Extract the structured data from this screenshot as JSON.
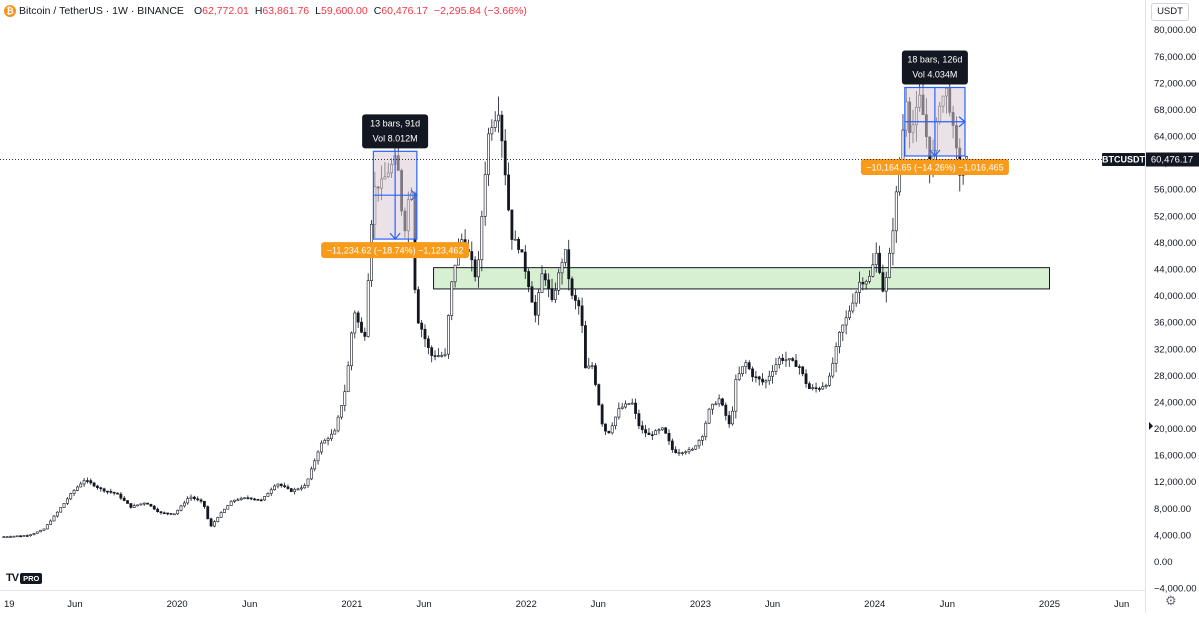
{
  "legend": {
    "icon": "bitcoin-icon",
    "title": "Bitcoin / TetherUS · 1W · BINANCE",
    "o_label": "O",
    "o_value": "62,772.01",
    "h_label": "H",
    "h_value": "63,861.76",
    "l_label": "L",
    "l_value": "59,600.00",
    "c_label": "C",
    "c_value": "60,476.17",
    "change": "−2,295.84 (−3.66%)"
  },
  "currency_button": "USDT",
  "last_price": {
    "symbol": "BTCUSDT",
    "value": "60,476.17",
    "price": 60476.17
  },
  "watermark": {
    "logo": "TV",
    "badge": "PRO"
  },
  "settings_icon": "gear-icon",
  "colors": {
    "up": "#131722",
    "down": "#131722",
    "measure_box": "#2962ff",
    "measure_fill": "#d9cbd2",
    "label_dark": "#131722",
    "label_orange": "#f89b1a",
    "zone_fill": "#d8f0d2",
    "zone_border": "#131722",
    "axis_text": "#131722",
    "current_price_line": "#131722"
  },
  "chart_data": {
    "type": "candlestick",
    "interval": "1W",
    "x_axis_labels": [
      "19",
      "Jun",
      "2020",
      "Jun",
      "2021",
      "Jun",
      "2022",
      "Jun",
      "2023",
      "Jun",
      "2024",
      "Jun",
      "2025",
      "Jun"
    ],
    "x_axis_label_dates": [
      "2019-01-01",
      "2019-06-01",
      "2020-01-01",
      "2020-06-01",
      "2021-01-01",
      "2021-06-01",
      "2022-01-01",
      "2022-06-01",
      "2023-01-01",
      "2023-06-01",
      "2024-01-01",
      "2024-06-01",
      "2025-01-01",
      "2025-06-01"
    ],
    "y_axis_labels": [
      "80,000.00",
      "76,000.00",
      "72,000.00",
      "68,000.00",
      "64,000.00",
      "60,000.00",
      "56,000.00",
      "52,000.00",
      "48,000.00",
      "44,000.00",
      "40,000.00",
      "36,000.00",
      "32,000.00",
      "28,000.00",
      "24,000.00",
      "20,000.00",
      "16,000.00",
      "12,000.00",
      "8,000.00",
      "4,000.00",
      "0.00",
      "−4,000.00"
    ],
    "y_range": [
      -5000,
      82000
    ],
    "x_range": [
      "2018-12-26",
      "2025-07-20"
    ],
    "price_series": [
      [
        "2019-01-01",
        3700
      ],
      [
        "2019-03-01",
        3950
      ],
      [
        "2019-04-01",
        4800
      ],
      [
        "2019-05-01",
        7500
      ],
      [
        "2019-06-01",
        10500
      ],
      [
        "2019-06-26",
        12300
      ],
      [
        "2019-08-01",
        10800
      ],
      [
        "2019-09-01",
        10200
      ],
      [
        "2019-10-01",
        8200
      ],
      [
        "2019-11-01",
        8900
      ],
      [
        "2019-12-01",
        7300
      ],
      [
        "2020-01-01",
        7200
      ],
      [
        "2020-02-01",
        9800
      ],
      [
        "2020-03-01",
        8800
      ],
      [
        "2020-03-15",
        5100
      ],
      [
        "2020-04-01",
        6800
      ],
      [
        "2020-05-01",
        9200
      ],
      [
        "2020-06-01",
        9600
      ],
      [
        "2020-07-01",
        9200
      ],
      [
        "2020-08-01",
        11800
      ],
      [
        "2020-09-01",
        10600
      ],
      [
        "2020-10-01",
        11400
      ],
      [
        "2020-11-01",
        17600
      ],
      [
        "2020-12-01",
        19500
      ],
      [
        "2020-12-25",
        26500
      ],
      [
        "2021-01-10",
        38000
      ],
      [
        "2021-02-01",
        33000
      ],
      [
        "2021-02-20",
        56000
      ],
      [
        "2021-03-10",
        57000
      ],
      [
        "2021-04-10",
        61000
      ],
      [
        "2021-04-25",
        49000
      ],
      [
        "2021-05-10",
        58000
      ],
      [
        "2021-05-20",
        37000
      ],
      [
        "2021-06-01",
        35000
      ],
      [
        "2021-06-20",
        31000
      ],
      [
        "2021-07-20",
        31000
      ],
      [
        "2021-08-01",
        41000
      ],
      [
        "2021-08-20",
        49000
      ],
      [
        "2021-09-10",
        46000
      ],
      [
        "2021-09-25",
        42000
      ],
      [
        "2021-10-10",
        57000
      ],
      [
        "2021-10-20",
        65000
      ],
      [
        "2021-11-10",
        68000
      ],
      [
        "2021-11-25",
        57000
      ],
      [
        "2021-12-05",
        49000
      ],
      [
        "2021-12-25",
        47000
      ],
      [
        "2022-01-10",
        42000
      ],
      [
        "2022-01-25",
        37000
      ],
      [
        "2022-02-10",
        44000
      ],
      [
        "2022-03-01",
        39000
      ],
      [
        "2022-03-28",
        47000
      ],
      [
        "2022-04-10",
        40000
      ],
      [
        "2022-04-30",
        38000
      ],
      [
        "2022-05-10",
        29000
      ],
      [
        "2022-05-25",
        29500
      ],
      [
        "2022-06-13",
        21000
      ],
      [
        "2022-06-25",
        19000
      ],
      [
        "2022-07-20",
        23000
      ],
      [
        "2022-08-15",
        24000
      ],
      [
        "2022-09-01",
        20000
      ],
      [
        "2022-09-20",
        19000
      ],
      [
        "2022-10-20",
        20000
      ],
      [
        "2022-11-10",
        16500
      ],
      [
        "2022-11-25",
        16500
      ],
      [
        "2022-12-20",
        16800
      ],
      [
        "2023-01-10",
        19000
      ],
      [
        "2023-01-25",
        23000
      ],
      [
        "2023-02-15",
        24500
      ],
      [
        "2023-03-10",
        20000
      ],
      [
        "2023-03-20",
        27000
      ],
      [
        "2023-04-10",
        30000
      ],
      [
        "2023-04-25",
        28000
      ],
      [
        "2023-05-20",
        26800
      ],
      [
        "2023-06-20",
        30500
      ],
      [
        "2023-07-10",
        30300
      ],
      [
        "2023-08-01",
        29300
      ],
      [
        "2023-08-20",
        26000
      ],
      [
        "2023-09-10",
        26000
      ],
      [
        "2023-10-01",
        27000
      ],
      [
        "2023-10-25",
        34500
      ],
      [
        "2023-11-10",
        37000
      ],
      [
        "2023-12-05",
        42000
      ],
      [
        "2023-12-25",
        42500
      ],
      [
        "2024-01-10",
        46500
      ],
      [
        "2024-01-25",
        40000
      ],
      [
        "2024-02-10",
        48000
      ],
      [
        "2024-02-28",
        61000
      ],
      [
        "2024-03-14",
        71000
      ],
      [
        "2024-03-20",
        64000
      ],
      [
        "2024-04-10",
        70000
      ],
      [
        "2024-04-25",
        63000
      ],
      [
        "2024-05-01",
        58000
      ],
      [
        "2024-05-20",
        69000
      ],
      [
        "2024-06-05",
        71000
      ],
      [
        "2024-06-20",
        64000
      ],
      [
        "2024-07-05",
        57000
      ],
      [
        "2024-07-15",
        60476
      ]
    ],
    "annotations": [
      {
        "type": "date_price_range",
        "bars_text": "13 bars, 91d",
        "vol_text": "Vol 8.012M",
        "change_text": "−11,234.62 (−18.74%) −1,123,462",
        "start": "2021-02-15",
        "end": "2021-05-17",
        "high": 61700,
        "low": 48500
      },
      {
        "type": "date_price_range",
        "bars_text": "18 bars, 126d",
        "vol_text": "Vol 4.034M",
        "change_text": "−10,164.65 (−14.26%) −1,016,465",
        "start": "2024-03-04",
        "end": "2024-07-08",
        "high": 71300,
        "low": 61000
      },
      {
        "type": "rectangle_zone",
        "start": "2021-06-21",
        "end": "2025-01-01",
        "top": 44200,
        "bottom": 41000
      }
    ]
  }
}
